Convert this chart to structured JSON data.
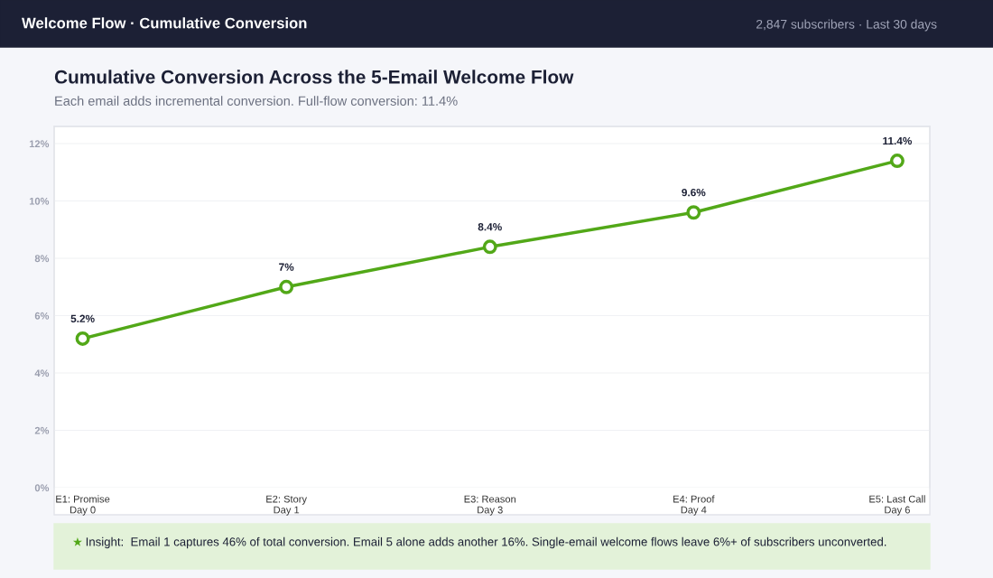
{
  "chart_data": {
    "type": "line",
    "title": "Cumulative Conversion Across the 5-Email Welcome Flow",
    "subtitle": "Each email adds incremental conversion. Full-flow conversion: 11.4%",
    "annotations": [
      "Welcome Flow · Cumulative Conversion",
      "2,847 subscribers · Last 30 days",
      "★ Insight:  Email 1 captures 46% of total conversion. Email 5 alone adds another 16%. Single-email welcome flows leave 6%+ of subscribers unconverted."
    ],
    "categories": [
      "E1: Promise\nDay 0",
      "E2: Story\nDay 1",
      "E3: Reason\nDay 3",
      "E4: Proof\nDay 4",
      "E5: Last Call\nDay 6"
    ],
    "series": [
      {
        "color": "#52a818",
        "values": [
          5.2,
          7,
          8.4,
          9.6,
          11.4
        ],
        "value_labels": [
          "5.2%",
          "7%",
          "8.4%",
          "9.6%",
          "11.4%"
        ]
      }
    ],
    "ylim": [
      0,
      12.6
    ],
    "yticks": [
      {
        "value": 0,
        "label": "0%"
      },
      {
        "value": 2,
        "label": "2%"
      },
      {
        "value": 4,
        "label": "4%"
      },
      {
        "value": 6,
        "label": "6%"
      },
      {
        "value": 8,
        "label": "8%"
      },
      {
        "value": 10,
        "label": "10%"
      },
      {
        "value": 12,
        "label": "12%"
      }
    ],
    "grid": "y",
    "legend": false,
    "marker": "circle",
    "line_style": "solid"
  }
}
